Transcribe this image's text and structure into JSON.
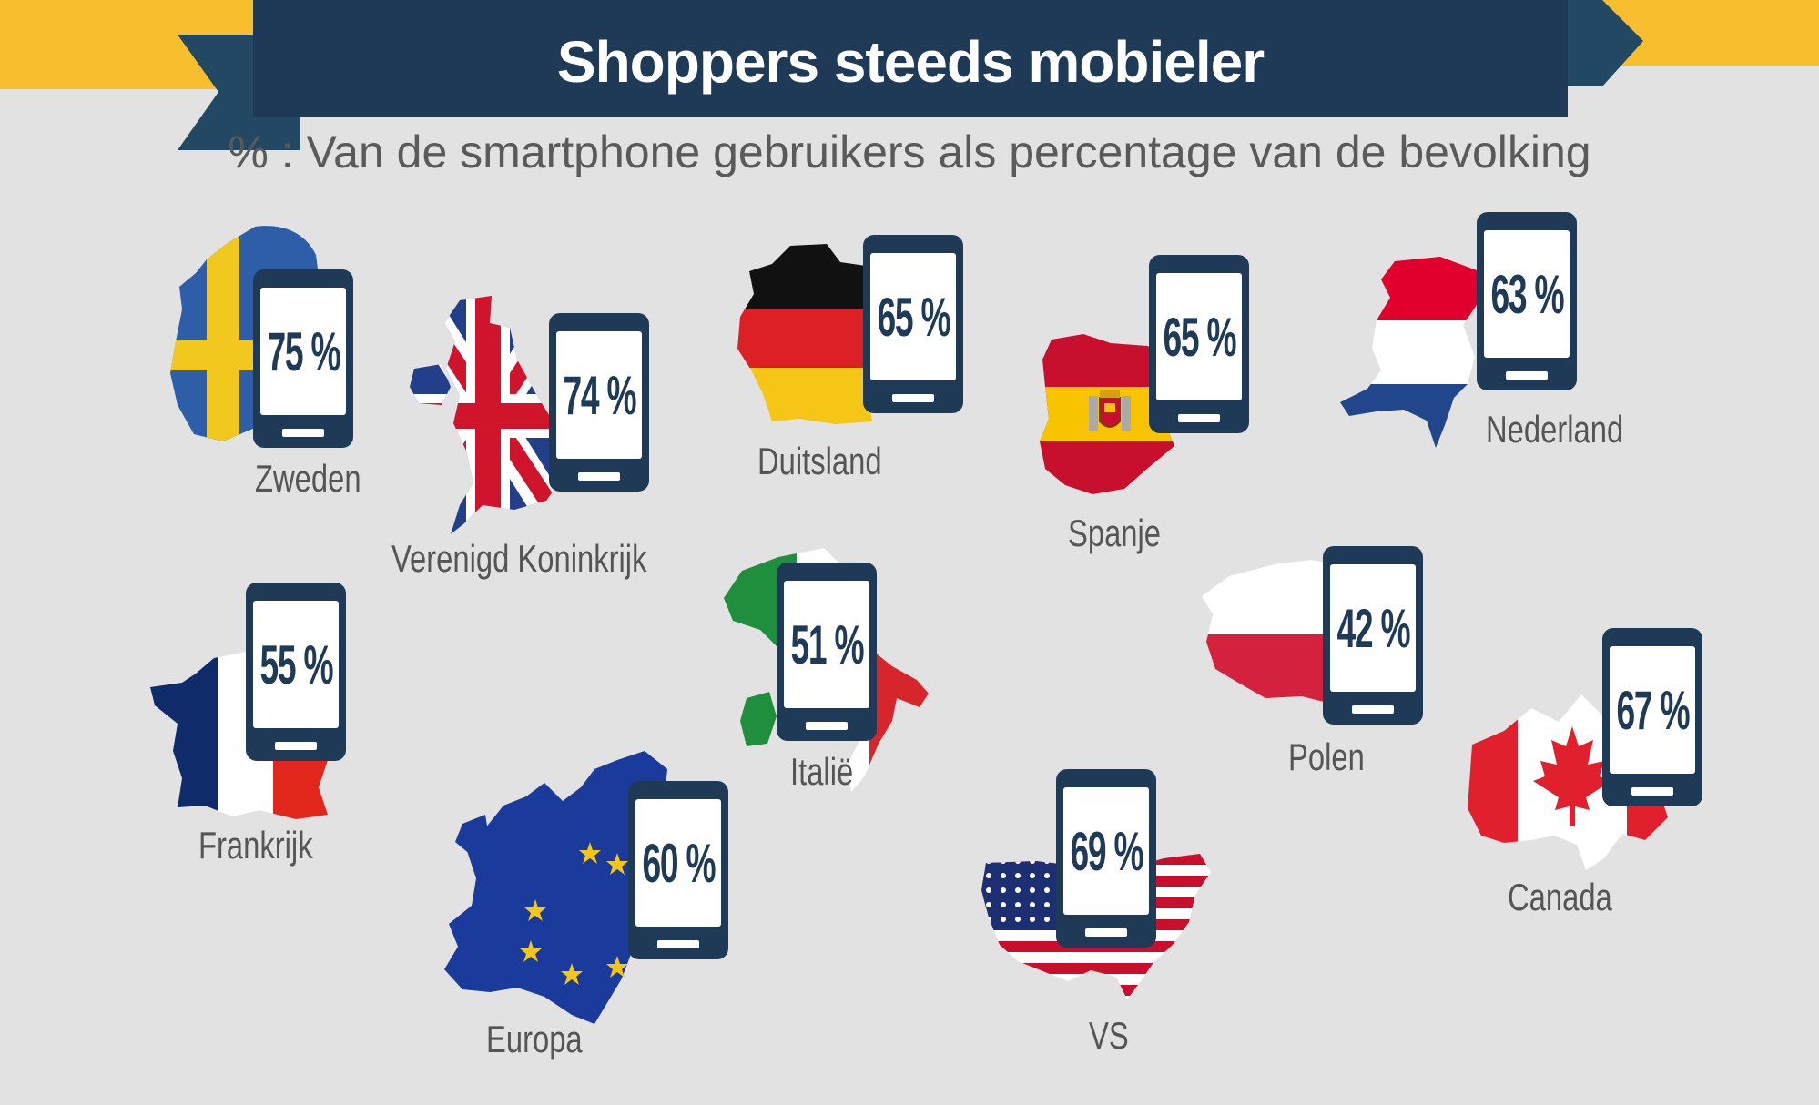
{
  "header": {
    "title": "Shoppers steeds mobieler",
    "subtitle": "% : Van de smartphone gebruikers als percentage van de bevolking"
  },
  "colors": {
    "background": "#e2e2e2",
    "banner_yellow": "#f8be2e",
    "banner_navy": "#1e3a57",
    "ribbon_tail": "#234863",
    "phone": "#1e3a57",
    "label_text": "#555555"
  },
  "countries": [
    {
      "id": "zweden",
      "name": "Zweden",
      "percent": "75 %",
      "value": 75,
      "flag": "sweden-flag-map-icon"
    },
    {
      "id": "vk",
      "name": "Verenigd Koninkrijk",
      "percent": "74 %",
      "value": 74,
      "flag": "uk-flag-map-icon"
    },
    {
      "id": "duitsland",
      "name": "Duitsland",
      "percent": "65 %",
      "value": 65,
      "flag": "germany-flag-map-icon"
    },
    {
      "id": "spanje",
      "name": "Spanje",
      "percent": "65 %",
      "value": 65,
      "flag": "spain-flag-map-icon"
    },
    {
      "id": "nederland",
      "name": "Nederland",
      "percent": "63 %",
      "value": 63,
      "flag": "netherlands-flag-map-icon"
    },
    {
      "id": "frankrijk",
      "name": "Frankrijk",
      "percent": "55 %",
      "value": 55,
      "flag": "france-flag-map-icon"
    },
    {
      "id": "italie",
      "name": "Italië",
      "percent": "51 %",
      "value": 51,
      "flag": "italy-flag-map-icon"
    },
    {
      "id": "polen",
      "name": "Polen",
      "percent": "42 %",
      "value": 42,
      "flag": "poland-flag-map-icon"
    },
    {
      "id": "canada",
      "name": "Canada",
      "percent": "67 %",
      "value": 67,
      "flag": "canada-flag-map-icon"
    },
    {
      "id": "europa",
      "name": "Europa",
      "percent": "60 %",
      "value": 60,
      "flag": "eu-flag-map-icon"
    },
    {
      "id": "vs",
      "name": "VS",
      "percent": "69 %",
      "value": 69,
      "flag": "usa-flag-map-icon"
    }
  ]
}
